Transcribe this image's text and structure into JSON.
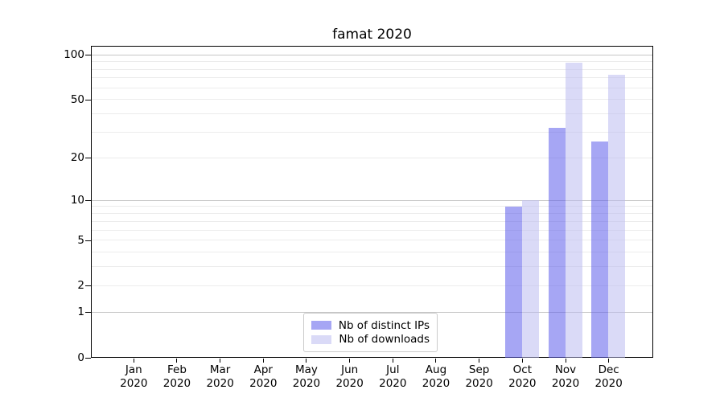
{
  "title": "famat 2020",
  "chart_data": {
    "type": "bar",
    "title": "famat 2020",
    "categories": [
      "Jan 2020",
      "Feb 2020",
      "Mar 2020",
      "Apr 2020",
      "May 2020",
      "Jun 2020",
      "Jul 2020",
      "Aug 2020",
      "Sep 2020",
      "Oct 2020",
      "Nov 2020",
      "Dec 2020"
    ],
    "series": [
      {
        "name": "Nb of distinct IPs",
        "color": "#5c5ceb",
        "alpha": 0.55,
        "values": [
          0,
          0,
          0,
          0,
          0,
          0,
          0,
          0,
          0,
          9,
          32,
          26
        ]
      },
      {
        "name": "Nb of downloads",
        "color": "#b9b9f0",
        "alpha": 0.52,
        "values": [
          0,
          0,
          0,
          0,
          0,
          0,
          0,
          0,
          0,
          10,
          89,
          73
        ]
      }
    ],
    "xlabel": "",
    "ylabel": "",
    "yscale": "log1p",
    "yticks": [
      0,
      1,
      2,
      5,
      10,
      20,
      50,
      100
    ],
    "minor_yticks": [
      2,
      3,
      4,
      5,
      6,
      7,
      8,
      9,
      20,
      30,
      40,
      50,
      60,
      70,
      80,
      90
    ],
    "major_grid_yticks": [
      1,
      10,
      100
    ],
    "ylim": [
      0,
      115
    ],
    "grid": "both",
    "legend_position": "lower center"
  },
  "colors": {
    "major_grid": "#c6c6c6",
    "minor_grid": "#ececec",
    "spine": "#000000",
    "legend_border": "#cccccc",
    "background": "#ffffff"
  }
}
